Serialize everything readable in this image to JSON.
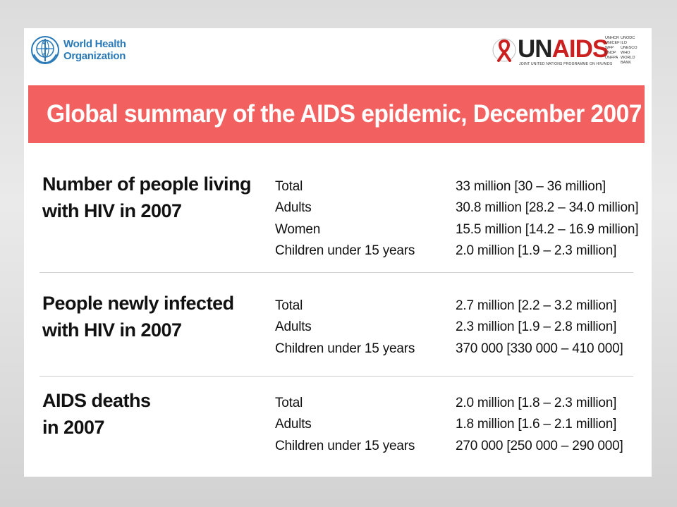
{
  "logos": {
    "who": {
      "line1": "World Health",
      "line2": "Organization",
      "icon": "who-emblem-icon"
    },
    "unaids": {
      "un": "UN",
      "aids": "AIDS",
      "tagline": "JOINT UNITED NATIONS PROGRAMME ON HIV/AIDS",
      "partners": [
        "UNHCR",
        "UNODC",
        "UNICEF",
        "ILO",
        "WFP",
        "UNESCO",
        "UNDP",
        "WHO",
        "UNFPA",
        "WORLD BANK"
      ],
      "icon": "red-ribbon-icon",
      "ribbon_color": "#cc1f1f"
    }
  },
  "banner": {
    "title": "Global summary of the AIDS epidemic, December 2007",
    "color": "#f26160"
  },
  "sections": [
    {
      "heading_line1": "Number of people living",
      "heading_line2": "with HIV in 2007",
      "rows": [
        {
          "label": "Total",
          "value": "33 million [30 – 36 million]"
        },
        {
          "label": "Adults",
          "value": "30.8 million [28.2 – 34.0 million]"
        },
        {
          "label": "Women",
          "value": "15.5 million [14.2 – 16.9 million]"
        },
        {
          "label": "Children under 15 years",
          "value": "2.0 million [1.9 – 2.3 million]"
        }
      ]
    },
    {
      "heading_line1": "People newly infected",
      "heading_line2": "with HIV in 2007",
      "rows": [
        {
          "label": "Total",
          "value": "2.7 million [2.2 – 3.2 million]"
        },
        {
          "label": "Adults",
          "value": "2.3 million [1.9 – 2.8 million]"
        },
        {
          "label": "Children under 15 years",
          "value": "370 000 [330 000 – 410 000]"
        }
      ]
    },
    {
      "heading_line1": "AIDS deaths",
      "heading_line2": "in 2007",
      "rows": [
        {
          "label": "Total",
          "value": "2.0 million [1.8 – 2.3 million]"
        },
        {
          "label": "Adults",
          "value": "1.8 million [1.6 – 2.1 million]"
        },
        {
          "label": "Children under 15 years",
          "value": "270 000 [250 000 – 290 000]"
        }
      ]
    }
  ]
}
